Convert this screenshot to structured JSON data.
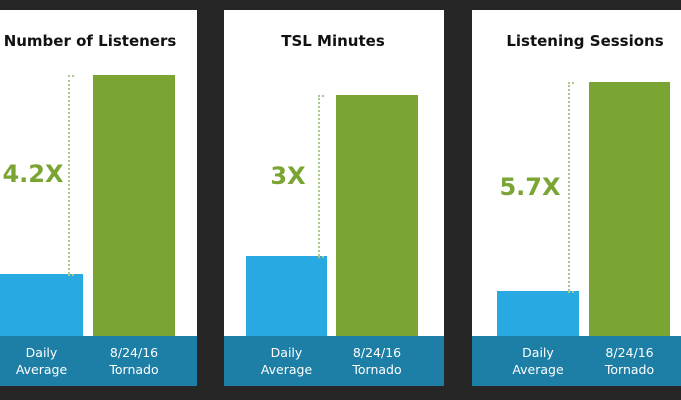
{
  "chart_data": [
    {
      "type": "bar",
      "title": "Number of Listeners",
      "categories": [
        "Daily Average",
        "8/24/16 Tornado"
      ],
      "values": [
        1,
        4.2
      ],
      "colors": [
        "#29a9e1",
        "#7aa533"
      ],
      "annotation": "4.2X",
      "ylim": [
        0,
        4.44
      ]
    },
    {
      "type": "bar",
      "title": "TSL Minutes",
      "categories": [
        "Daily Average",
        "8/24/16 Tornado"
      ],
      "values": [
        1,
        3
      ],
      "colors": [
        "#29a9e1",
        "#7aa533"
      ],
      "annotation": "3X",
      "ylim": [
        0,
        3.44
      ]
    },
    {
      "type": "bar",
      "title": "Listening Sessions",
      "categories": [
        "Daily Average",
        "8/24/16 Tornado"
      ],
      "values": [
        1,
        5.7
      ],
      "colors": [
        "#29a9e1",
        "#7aa533"
      ],
      "annotation": "5.7X",
      "ylim": [
        0,
        6.19
      ]
    }
  ]
}
